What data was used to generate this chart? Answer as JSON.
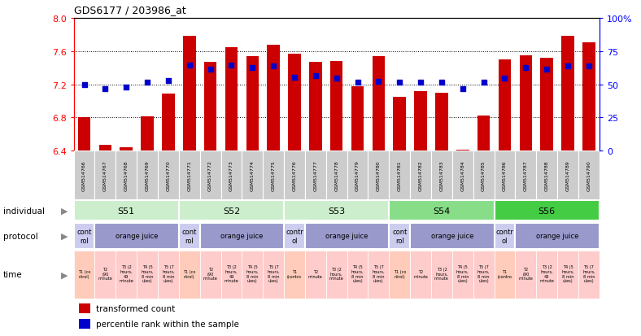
{
  "title": "GDS6177 / 203986_at",
  "samples": [
    "GSM514766",
    "GSM514767",
    "GSM514768",
    "GSM514769",
    "GSM514770",
    "GSM514771",
    "GSM514772",
    "GSM514773",
    "GSM514774",
    "GSM514775",
    "GSM514776",
    "GSM514777",
    "GSM514778",
    "GSM514779",
    "GSM514780",
    "GSM514781",
    "GSM514782",
    "GSM514783",
    "GSM514784",
    "GSM514785",
    "GSM514786",
    "GSM514787",
    "GSM514788",
    "GSM514789",
    "GSM514790"
  ],
  "bar_values": [
    6.8,
    6.47,
    6.44,
    6.81,
    7.09,
    7.78,
    7.47,
    7.65,
    7.54,
    7.67,
    7.57,
    7.47,
    7.48,
    7.18,
    7.54,
    7.05,
    7.12,
    7.1,
    6.41,
    6.82,
    7.5,
    7.55,
    7.52,
    7.78,
    7.7
  ],
  "percentile_values": [
    7.2,
    7.15,
    7.17,
    7.22,
    7.24,
    7.43,
    7.38,
    7.43,
    7.4,
    7.42,
    7.28,
    7.3,
    7.27,
    7.22,
    7.23,
    7.22,
    7.22,
    7.22,
    7.15,
    7.22,
    7.27,
    7.4,
    7.38,
    7.42,
    7.42
  ],
  "bar_color": "#CC0000",
  "dot_color": "#0000CC",
  "ymin": 6.4,
  "ymax": 8.0,
  "yticks": [
    6.4,
    6.8,
    7.2,
    7.6,
    8.0
  ],
  "right_yticks": [
    0,
    25,
    50,
    75,
    100
  ],
  "individuals": [
    {
      "label": "S51",
      "start": 0,
      "end": 4,
      "color": "#cceecc"
    },
    {
      "label": "S52",
      "start": 5,
      "end": 9,
      "color": "#cceecc"
    },
    {
      "label": "S53",
      "start": 10,
      "end": 14,
      "color": "#cceecc"
    },
    {
      "label": "S54",
      "start": 15,
      "end": 19,
      "color": "#88dd88"
    },
    {
      "label": "S56",
      "start": 20,
      "end": 24,
      "color": "#44cc44"
    }
  ],
  "protocols": [
    {
      "label": "cont\nrol",
      "start": 0,
      "end": 0,
      "color": "#ccccee"
    },
    {
      "label": "orange juice",
      "start": 1,
      "end": 4,
      "color": "#9999cc"
    },
    {
      "label": "cont\nrol",
      "start": 5,
      "end": 5,
      "color": "#ccccee"
    },
    {
      "label": "orange juice",
      "start": 6,
      "end": 9,
      "color": "#9999cc"
    },
    {
      "label": "contr\nol",
      "start": 10,
      "end": 10,
      "color": "#ccccee"
    },
    {
      "label": "orange juice",
      "start": 11,
      "end": 14,
      "color": "#9999cc"
    },
    {
      "label": "cont\nrol",
      "start": 15,
      "end": 15,
      "color": "#ccccee"
    },
    {
      "label": "orange juice",
      "start": 16,
      "end": 19,
      "color": "#9999cc"
    },
    {
      "label": "contr\nol",
      "start": 20,
      "end": 20,
      "color": "#ccccee"
    },
    {
      "label": "orange juice",
      "start": 21,
      "end": 24,
      "color": "#9999cc"
    }
  ],
  "time_labels": [
    "T1 (co\nntrol)",
    "T2\n(90\nminute",
    "T3 (2\nhours,\n49\nminute",
    "T4 (5\nhours,\n8 min\nutes)",
    "T5 (7\nhours,\n8 min\nutes)",
    "T1 (co\nntrol)",
    "T2\n(90\nminute",
    "T3 (2\nhours,\n49\nminute",
    "T4 (5\nhours,\n8 min\nutes)",
    "T5 (7\nhours,\n8 min\nutes)",
    "T1\n(contro",
    "T2\nminute",
    "T3 (2\nhours,\nminute",
    "T4 (5\nhours,\n8 min\nutes)",
    "T5 (7\nhours,\n8 min\nutes)",
    "T1 (co\nntrol)",
    "T2\nminute",
    "T3 (2\nhours,\nminute",
    "T4 (5\nhours,\n8 min\nutes)",
    "T5 (7\nhours,\n8 min\nutes)",
    "T1\n(contro",
    "T2\n(90\nminute",
    "T3 (2\nhours,\n49\nminute",
    "T4 (5\nhours,\n8 min\nutes)",
    "T5 (7\nhours,\n8 min\nutes)"
  ],
  "ctrl_indices": [
    0,
    5,
    10,
    15,
    20
  ],
  "time_ctrl_color": "#ffccbb",
  "time_oj_color": "#ffcccc",
  "legend_bar_label": "transformed count",
  "legend_dot_label": "percentile rank within the sample",
  "row_labels": [
    "individual",
    "protocol",
    "time"
  ]
}
